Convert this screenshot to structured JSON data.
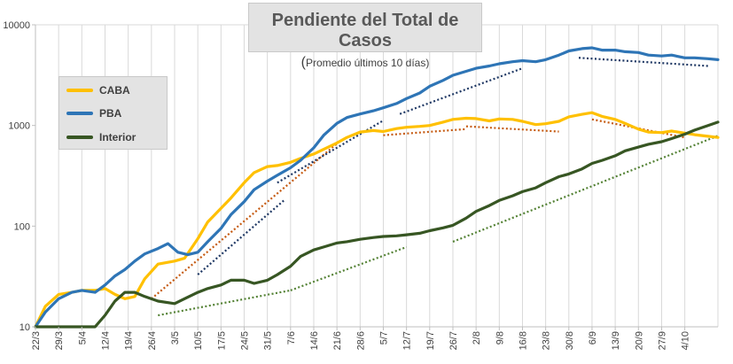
{
  "chart_data": {
    "type": "line",
    "title": "Pendiente del Total de Casos",
    "subtitle_paren": "(",
    "subtitle": "Promedio últimos 10 días)",
    "yscale": "log",
    "ylim": [
      10,
      10000
    ],
    "y_ticks": [
      "10",
      "100",
      "1000",
      "10000"
    ],
    "x_ticks": [
      "22/3",
      "29/3",
      "5/4",
      "12/4",
      "19/4",
      "26/4",
      "3/5",
      "10/5",
      "17/5",
      "24/5",
      "31/5",
      "7/6",
      "14/6",
      "21/6",
      "28/6",
      "5/7",
      "12/7",
      "19/7",
      "26/7",
      "2/8",
      "9/8",
      "16/8",
      "23/8",
      "30/8",
      "6/9",
      "13/9",
      "20/9",
      "27/9",
      "4/10"
    ],
    "x_range": [
      "22/3",
      "14/10"
    ],
    "grid": "vertical",
    "legend_position": "left",
    "series": [
      {
        "name": "CABA",
        "color": "#ffc000",
        "points": [
          [
            "22/3",
            10
          ],
          [
            "25/3",
            16
          ],
          [
            "29/3",
            21
          ],
          [
            "2/4",
            22
          ],
          [
            "5/4",
            23
          ],
          [
            "9/4",
            23
          ],
          [
            "12/4",
            24
          ],
          [
            "15/4",
            21
          ],
          [
            "18/4",
            19
          ],
          [
            "21/4",
            20
          ],
          [
            "24/4",
            30
          ],
          [
            "28/4",
            42
          ],
          [
            "3/5",
            45
          ],
          [
            "6/5",
            48
          ],
          [
            "10/5",
            75
          ],
          [
            "13/5",
            110
          ],
          [
            "17/5",
            150
          ],
          [
            "20/5",
            190
          ],
          [
            "24/5",
            270
          ],
          [
            "27/5",
            340
          ],
          [
            "31/5",
            390
          ],
          [
            "3/6",
            400
          ],
          [
            "7/6",
            430
          ],
          [
            "10/6",
            470
          ],
          [
            "14/6",
            520
          ],
          [
            "17/6",
            580
          ],
          [
            "21/6",
            670
          ],
          [
            "24/6",
            760
          ],
          [
            "28/6",
            860
          ],
          [
            "2/7",
            890
          ],
          [
            "5/7",
            870
          ],
          [
            "9/7",
            930
          ],
          [
            "12/7",
            960
          ],
          [
            "16/7",
            980
          ],
          [
            "19/7",
            1000
          ],
          [
            "23/7",
            1080
          ],
          [
            "26/7",
            1150
          ],
          [
            "30/7",
            1180
          ],
          [
            "2/8",
            1170
          ],
          [
            "6/8",
            1110
          ],
          [
            "9/8",
            1160
          ],
          [
            "13/8",
            1150
          ],
          [
            "16/8",
            1100
          ],
          [
            "20/8",
            1020
          ],
          [
            "23/8",
            1040
          ],
          [
            "27/8",
            1100
          ],
          [
            "30/8",
            1220
          ],
          [
            "3/9",
            1290
          ],
          [
            "6/9",
            1340
          ],
          [
            "9/9",
            1230
          ],
          [
            "13/9",
            1150
          ],
          [
            "16/9",
            1050
          ],
          [
            "20/9",
            920
          ],
          [
            "23/9",
            860
          ],
          [
            "27/9",
            850
          ],
          [
            "30/9",
            880
          ],
          [
            "4/10",
            840
          ],
          [
            "7/10",
            810
          ],
          [
            "11/10",
            780
          ],
          [
            "14/10",
            760
          ]
        ]
      },
      {
        "name": "PBA",
        "color": "#2e75b6",
        "points": [
          [
            "22/3",
            10
          ],
          [
            "25/3",
            14
          ],
          [
            "29/3",
            19
          ],
          [
            "2/4",
            22
          ],
          [
            "5/4",
            23
          ],
          [
            "9/4",
            22
          ],
          [
            "12/4",
            26
          ],
          [
            "15/4",
            32
          ],
          [
            "18/4",
            37
          ],
          [
            "21/4",
            45
          ],
          [
            "24/4",
            53
          ],
          [
            "28/4",
            60
          ],
          [
            "1/5",
            67
          ],
          [
            "4/5",
            55
          ],
          [
            "7/5",
            52
          ],
          [
            "10/5",
            55
          ],
          [
            "13/5",
            70
          ],
          [
            "17/5",
            95
          ],
          [
            "20/5",
            130
          ],
          [
            "24/5",
            175
          ],
          [
            "27/5",
            230
          ],
          [
            "31/5",
            280
          ],
          [
            "3/6",
            320
          ],
          [
            "7/6",
            380
          ],
          [
            "10/6",
            450
          ],
          [
            "14/6",
            600
          ],
          [
            "17/6",
            800
          ],
          [
            "21/6",
            1050
          ],
          [
            "24/6",
            1200
          ],
          [
            "28/6",
            1300
          ],
          [
            "2/7",
            1400
          ],
          [
            "5/7",
            1500
          ],
          [
            "9/7",
            1650
          ],
          [
            "12/7",
            1850
          ],
          [
            "16/7",
            2100
          ],
          [
            "19/7",
            2450
          ],
          [
            "23/7",
            2800
          ],
          [
            "26/7",
            3150
          ],
          [
            "30/7",
            3450
          ],
          [
            "2/8",
            3700
          ],
          [
            "6/8",
            3900
          ],
          [
            "9/8",
            4100
          ],
          [
            "13/8",
            4300
          ],
          [
            "16/8",
            4400
          ],
          [
            "20/8",
            4300
          ],
          [
            "23/8",
            4500
          ],
          [
            "27/8",
            5000
          ],
          [
            "30/8",
            5500
          ],
          [
            "3/9",
            5800
          ],
          [
            "6/9",
            5900
          ],
          [
            "9/9",
            5600
          ],
          [
            "13/9",
            5600
          ],
          [
            "16/9",
            5400
          ],
          [
            "20/9",
            5300
          ],
          [
            "23/9",
            5000
          ],
          [
            "27/9",
            4900
          ],
          [
            "30/9",
            5000
          ],
          [
            "4/10",
            4700
          ],
          [
            "7/10",
            4700
          ],
          [
            "11/10",
            4600
          ],
          [
            "14/10",
            4500
          ]
        ]
      },
      {
        "name": "Interior",
        "color": "#375623",
        "points": [
          [
            "22/3",
            8
          ],
          [
            "25/3",
            8
          ],
          [
            "29/3",
            8
          ],
          [
            "2/4",
            8
          ],
          [
            "5/4",
            9
          ],
          [
            "9/4",
            10
          ],
          [
            "12/4",
            13
          ],
          [
            "15/4",
            18
          ],
          [
            "18/4",
            22
          ],
          [
            "21/4",
            22
          ],
          [
            "24/4",
            20
          ],
          [
            "28/4",
            18
          ],
          [
            "3/5",
            17
          ],
          [
            "6/5",
            19
          ],
          [
            "10/5",
            22
          ],
          [
            "13/5",
            24
          ],
          [
            "17/5",
            26
          ],
          [
            "20/5",
            29
          ],
          [
            "24/5",
            29
          ],
          [
            "27/5",
            27
          ],
          [
            "31/5",
            29
          ],
          [
            "3/6",
            33
          ],
          [
            "7/6",
            40
          ],
          [
            "10/6",
            50
          ],
          [
            "14/6",
            58
          ],
          [
            "17/6",
            62
          ],
          [
            "21/6",
            68
          ],
          [
            "24/6",
            70
          ],
          [
            "28/6",
            74
          ],
          [
            "2/7",
            77
          ],
          [
            "5/7",
            79
          ],
          [
            "9/7",
            80
          ],
          [
            "12/7",
            82
          ],
          [
            "16/7",
            85
          ],
          [
            "19/7",
            90
          ],
          [
            "23/7",
            96
          ],
          [
            "26/7",
            102
          ],
          [
            "30/7",
            120
          ],
          [
            "2/8",
            140
          ],
          [
            "6/8",
            160
          ],
          [
            "9/8",
            180
          ],
          [
            "13/8",
            200
          ],
          [
            "16/8",
            220
          ],
          [
            "20/8",
            240
          ],
          [
            "23/8",
            270
          ],
          [
            "27/8",
            310
          ],
          [
            "30/8",
            330
          ],
          [
            "3/9",
            370
          ],
          [
            "6/9",
            420
          ],
          [
            "9/9",
            450
          ],
          [
            "13/9",
            500
          ],
          [
            "16/9",
            560
          ],
          [
            "20/9",
            610
          ],
          [
            "23/9",
            650
          ],
          [
            "27/9",
            690
          ],
          [
            "30/9",
            740
          ],
          [
            "4/10",
            820
          ],
          [
            "7/10",
            900
          ],
          [
            "11/10",
            1000
          ],
          [
            "14/10",
            1080
          ]
        ]
      }
    ],
    "trendlines": [
      {
        "color": "#c55a11",
        "from": [
          "26/4",
          19
        ],
        "to": [
          "21/6",
          660
        ]
      },
      {
        "color": "#c55a11",
        "from": [
          "5/7",
          800
        ],
        "to": [
          "30/7",
          920
        ]
      },
      {
        "color": "#c55a11",
        "from": [
          "30/7",
          980
        ],
        "to": [
          "27/8",
          870
        ]
      },
      {
        "color": "#c55a11",
        "from": [
          "6/9",
          1150
        ],
        "to": [
          "4/10",
          760
        ]
      },
      {
        "color": "#1f3864",
        "from": [
          "10/5",
          33
        ],
        "to": [
          "5/6",
          180
        ]
      },
      {
        "color": "#1f3864",
        "from": [
          "3/6",
          270
        ],
        "to": [
          "5/7",
          1120
        ]
      },
      {
        "color": "#1f3864",
        "from": [
          "10/7",
          1300
        ],
        "to": [
          "16/8",
          3700
        ]
      },
      {
        "color": "#1f3864",
        "from": [
          "2/9",
          4700
        ],
        "to": [
          "11/10",
          3900
        ]
      },
      {
        "color": "#548235",
        "from": [
          "28/4",
          13
        ],
        "to": [
          "7/6",
          23
        ]
      },
      {
        "color": "#548235",
        "from": [
          "7/6",
          23
        ],
        "to": [
          "12/7",
          62
        ]
      },
      {
        "color": "#548235",
        "from": [
          "26/7",
          70
        ],
        "to": [
          "14/10",
          790
        ]
      }
    ]
  }
}
